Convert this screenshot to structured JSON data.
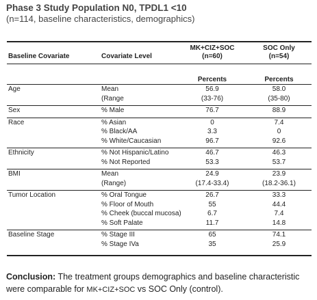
{
  "title": "Phase 3 Study Population N0, TPDL1 <10",
  "subtitle": "(n=114, baseline characteristics, demographics)",
  "table": {
    "headers": {
      "covariate": "Baseline Covariate",
      "level": "Covariate Level",
      "arm1_line1": "MK+CIZ+SOC",
      "arm1_line2": "(n=60)",
      "arm2_line1": "SOC Only",
      "arm2_line2": "(n=54)",
      "percents1": "Percents",
      "percents2": "Percents"
    },
    "groups": [
      {
        "name": "Age",
        "rows": [
          {
            "level": "Mean",
            "a": "56.9",
            "b": "58.0"
          },
          {
            "level": "(Range",
            "a": "(33-76)",
            "b": "(35-80)"
          }
        ]
      },
      {
        "name": "Sex",
        "rows": [
          {
            "level": "% Male",
            "a": "76.7",
            "b": "88.9"
          }
        ]
      },
      {
        "name": "Race",
        "rows": [
          {
            "level": "% Asian",
            "a": "0",
            "b": "7.4"
          },
          {
            "level": "% Black/AA",
            "a": "3.3",
            "b": "0"
          },
          {
            "level": "% White/Caucasian",
            "a": "96.7",
            "b": "92.6"
          }
        ]
      },
      {
        "name": "Ethnicity",
        "rows": [
          {
            "level": "% Not Hispanic/Latino",
            "a": "46.7",
            "b": "46.3"
          },
          {
            "level": "% Not Reported",
            "a": "53.3",
            "b": "53.7"
          }
        ]
      },
      {
        "name": "BMI",
        "rows": [
          {
            "level": "Mean",
            "a": "24.9",
            "b": "23.9"
          },
          {
            "level": "(Range)",
            "a": "(17.4-33.4)",
            "b": "(18.2-36.1)"
          }
        ]
      },
      {
        "name": "Tumor Location",
        "rows": [
          {
            "level": "% Oral Tongue",
            "a": "26.7",
            "b": "33.3"
          },
          {
            "level": "% Floor of Mouth",
            "a": "55",
            "b": "44.4"
          },
          {
            "level": "% Cheek (buccal mucosa)",
            "a": "6.7",
            "b": "7.4"
          },
          {
            "level": "% Soft Palate",
            "a": "11.7",
            "b": "14.8"
          }
        ]
      },
      {
        "name": "Baseline Stage",
        "rows": [
          {
            "level": "% Stage III",
            "a": "65",
            "b": "74.1"
          },
          {
            "level": "% Stage IVa",
            "a": "35",
            "b": "25.9"
          }
        ]
      }
    ]
  },
  "conclusion": {
    "label": "Conclusion:",
    "text1": "The treatment groups demographics and baseline characteristic were comparable for ",
    "arm": "MK+CIZ+SOC",
    "text2": " vs SOC Only (control)."
  }
}
